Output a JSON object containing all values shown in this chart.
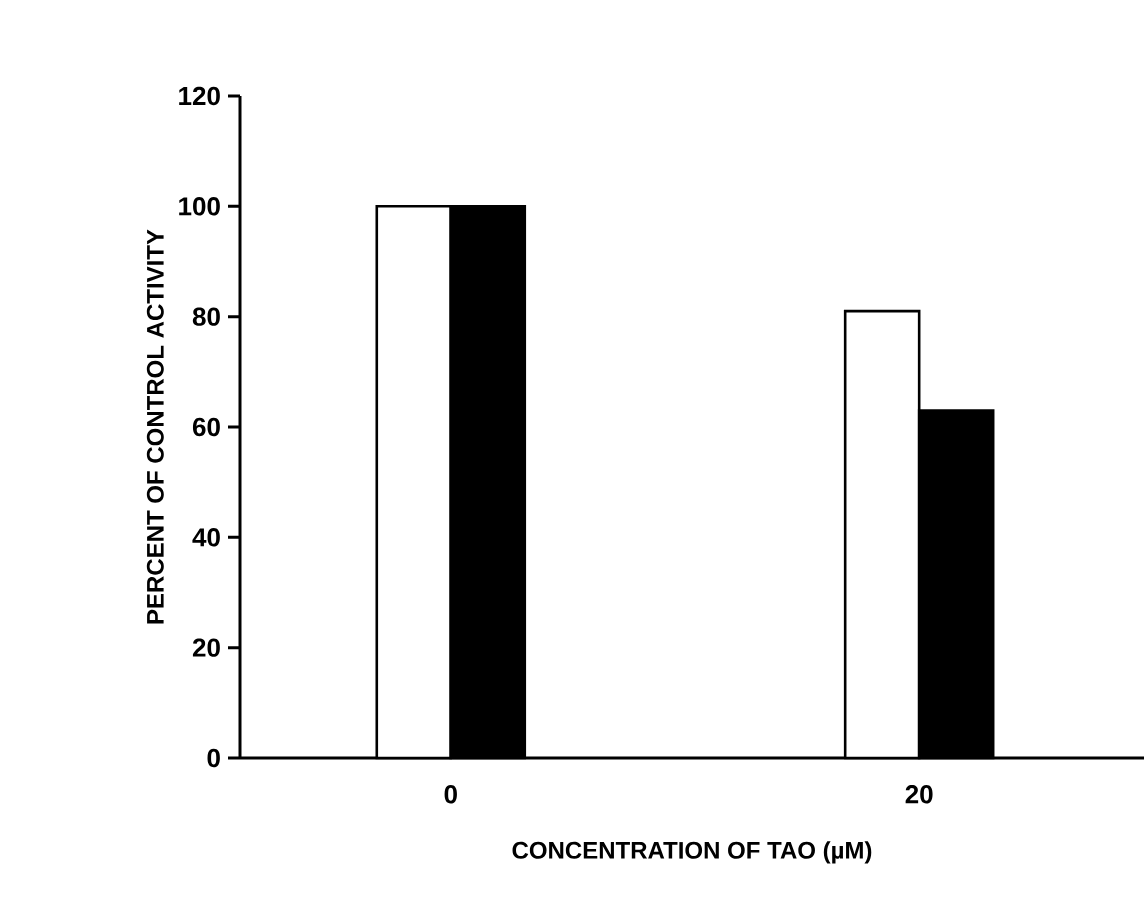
{
  "chart_data": {
    "type": "bar",
    "xlabel": "CONCENTRATION OF TAO (µM)",
    "ylabel": "PERCENT OF CONTROL ACTIVITY",
    "categories": [
      "0",
      "20"
    ],
    "series": [
      {
        "color": "#ffffff",
        "values": [
          100,
          81
        ]
      },
      {
        "color": "#000000",
        "values": [
          100,
          63
        ]
      }
    ],
    "ylim": [
      0,
      120
    ],
    "yticks": [
      0,
      20,
      40,
      60,
      80,
      100,
      120
    ],
    "grid": false
  }
}
